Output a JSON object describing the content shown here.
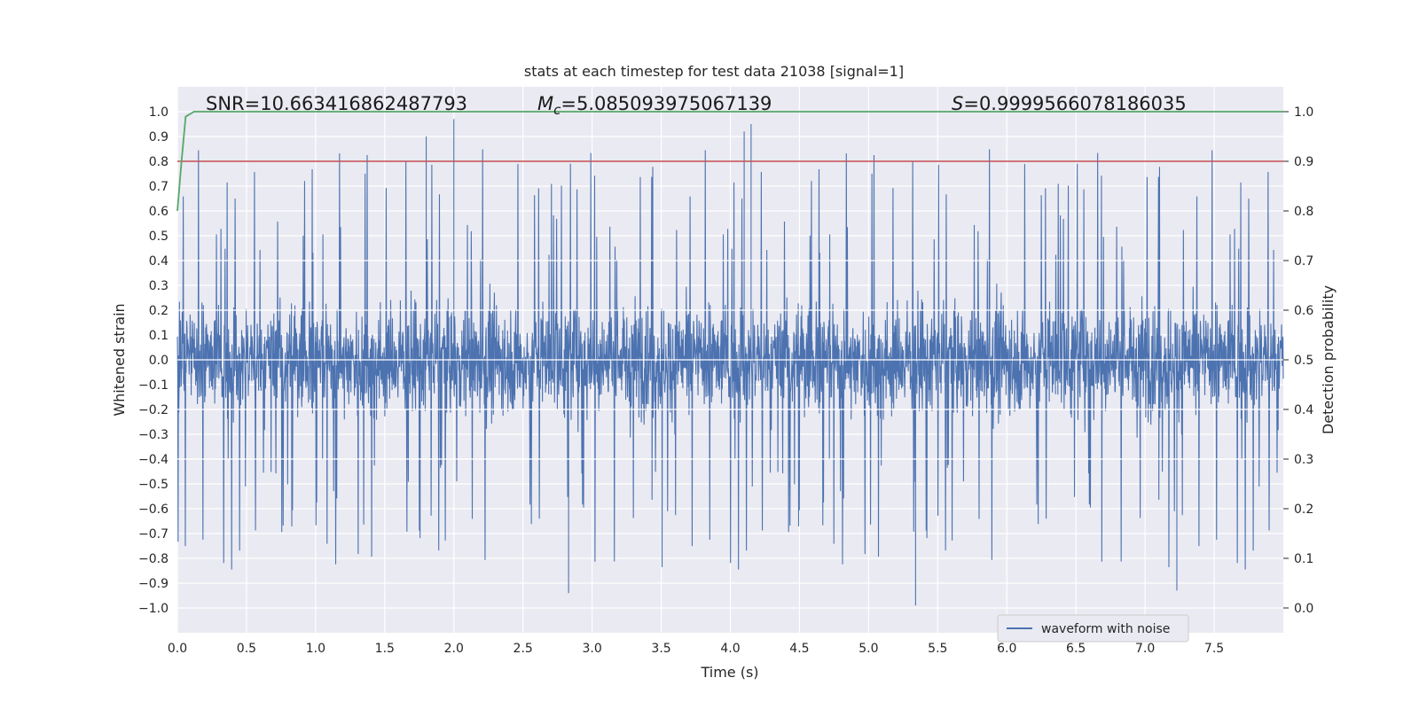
{
  "chart_data": {
    "type": "line",
    "title": "stats at each timestep for test data 21038 [signal=1]",
    "xlabel": "Time (s)",
    "ylabel": "Whitened strain",
    "ylabel_right": "Detection probability",
    "xlim": [
      0.0,
      8.0
    ],
    "ylim": [
      -1.1,
      1.1
    ],
    "ylim_right": [
      -0.05,
      1.05
    ],
    "x_ticks": [
      "0.0",
      "0.5",
      "1.0",
      "1.5",
      "2.0",
      "2.5",
      "3.0",
      "3.5",
      "4.0",
      "4.5",
      "5.0",
      "5.5",
      "6.0",
      "6.5",
      "7.0",
      "7.5"
    ],
    "y_ticks": [
      "1.0",
      "0.9",
      "0.8",
      "0.7",
      "0.6",
      "0.5",
      "0.4",
      "0.3",
      "0.2",
      "0.1",
      "0.0",
      "−0.1",
      "−0.2",
      "−0.3",
      "−0.4",
      "−0.5",
      "−0.6",
      "−0.7",
      "−0.8",
      "−0.9",
      "−1.0"
    ],
    "y_ticks_right": [
      "1.0",
      "0.9",
      "0.8",
      "0.7",
      "0.6",
      "0.5",
      "0.4",
      "0.3",
      "0.2",
      "0.1",
      "0.0"
    ],
    "annotations": {
      "snr": "SNR=10.663416862487793",
      "mc_symbol": "M",
      "mc_sub": "c",
      "mc_value": "=5.085093975067139",
      "s_symbol": "S",
      "s_value": "=0.9999566078186035"
    },
    "legend": {
      "label": "waveform with noise",
      "position": "lower-right"
    },
    "colors": {
      "waveform": "#4c72b0",
      "probability": "#55a868",
      "threshold": "#c44e52",
      "background": "#eaeaf2",
      "grid": "#ffffff"
    },
    "series": [
      {
        "name": "waveform with noise",
        "axis": "left",
        "kind": "noise",
        "x_range": [
          0.0,
          8.0
        ],
        "typical_range": [
          -0.4,
          0.4
        ],
        "peak_max": 0.97,
        "peak_min": -0.99
      },
      {
        "name": "detection probability",
        "axis": "right",
        "x": [
          0.0,
          0.03,
          0.06,
          0.12,
          8.0
        ],
        "values": [
          0.8,
          0.9,
          0.99,
          1.0,
          1.0
        ]
      },
      {
        "name": "threshold",
        "axis": "right",
        "x": [
          0.0,
          8.0
        ],
        "values": [
          0.9,
          0.9
        ]
      }
    ]
  }
}
